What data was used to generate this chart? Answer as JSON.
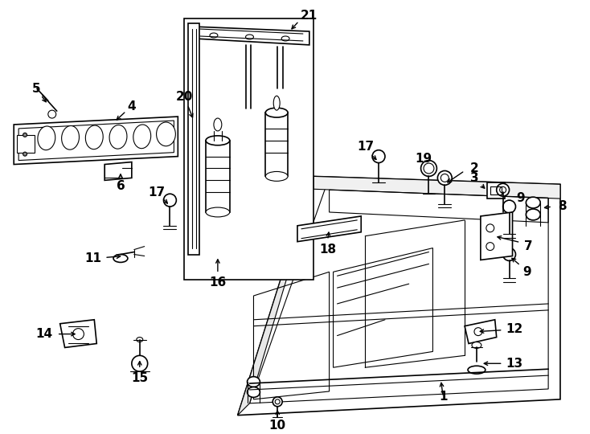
{
  "bg_color": "#ffffff",
  "line_color": "#000000",
  "fig_width": 7.34,
  "fig_height": 5.4,
  "dpi": 100,
  "label_fontsize": 11,
  "arrow_lw": 1.0
}
